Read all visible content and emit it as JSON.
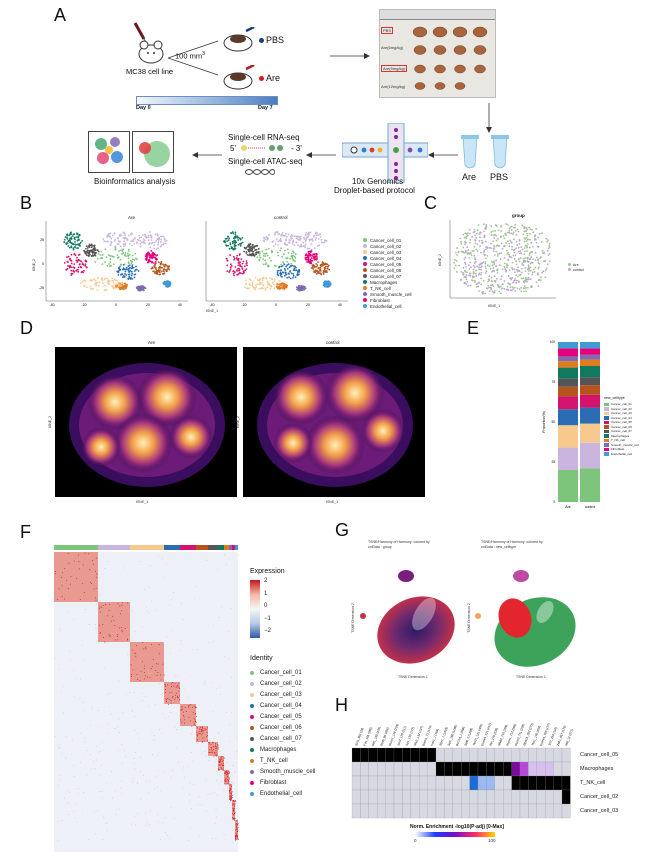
{
  "panels": {
    "A": "A",
    "B": "B",
    "C": "C",
    "D": "D",
    "E": "E",
    "F": "F",
    "G": "G",
    "H": "H"
  },
  "panelA": {
    "cell_line": "MC38 cell line",
    "tumor_size": "100 mm",
    "tumor_size_sup": "3",
    "pbs": "PBS",
    "are": "Are",
    "day0": "Day 0",
    "day7": "Day 7",
    "photo_rows": [
      "PBS",
      "Are(6mg/kg)",
      "Are(9mg/kg)",
      "Are(12mg/kg)"
    ],
    "tube_labels": [
      "Are",
      "PBS"
    ],
    "rna_seq": "Single-cell RNA-seq",
    "atac_seq": "Single-cell ATAC-seq",
    "seq_5": "5'",
    "seq_3": "- 3'",
    "genomics": "10x  Genomics",
    "droplet": "Droplet-based protocol",
    "bioinfo": "Bioinformatics analysis"
  },
  "panelB": {
    "titles": [
      "Are",
      "control"
    ],
    "xlabel": "tSNE_1",
    "ylabel": "tSNE_2",
    "x_ticks": [
      "-40",
      "-20",
      "0",
      "20",
      "40"
    ],
    "y_ticks": [
      "25",
      "0",
      "-25"
    ],
    "legend": [
      {
        "name": "Cancer_cell_01",
        "color": "#7cc57a"
      },
      {
        "name": "Cancer_cell_02",
        "color": "#c9b5dd"
      },
      {
        "name": "Cancer_cell_03",
        "color": "#f6c98e"
      },
      {
        "name": "Cancer_cell_04",
        "color": "#2a6db5"
      },
      {
        "name": "Cancer_cell_05",
        "color": "#d4136f"
      },
      {
        "name": "Cancer_cell_06",
        "color": "#b5551d"
      },
      {
        "name": "Cancer_cell_07",
        "color": "#555555"
      },
      {
        "name": "Macrophages",
        "color": "#117a5e"
      },
      {
        "name": "T_NK_cell",
        "color": "#e07b20"
      },
      {
        "name": "Smooth_muscle_cell",
        "color": "#7e6bb0"
      },
      {
        "name": "Fibroblast",
        "color": "#e6007e"
      },
      {
        "name": "Endothelial_cell",
        "color": "#3f9ad6"
      }
    ]
  },
  "panelC": {
    "title": "group",
    "xlabel": "tSNE_1",
    "ylabel": "tSNE_2",
    "legend": [
      {
        "name": "Are",
        "color": "#9ec98a"
      },
      {
        "name": "control",
        "color": "#b9a3d3"
      }
    ]
  },
  "panelD": {
    "titles": [
      "Are",
      "control"
    ],
    "xlabel": "tSNE_1",
    "ylabel": "tSNE_2"
  },
  "panelE": {
    "ylabel": "Proportion(%)",
    "y_ticks": [
      "100",
      "75",
      "50",
      "25",
      "0"
    ],
    "x_labels": [
      "Are",
      "control"
    ],
    "legend_title": "new_celltype",
    "legend": [
      "Cancer_cell_01",
      "Cancer_cell_02",
      "Cancer_cell_03",
      "Cancer_cell_04",
      "Cancer_cell_05",
      "Cancer_cell_06",
      "Cancer_cell_07",
      "Macrophages",
      "T_NK_cell",
      "Smooth_muscle_cell",
      "Fibroblast",
      "Endothelial_cell"
    ]
  },
  "panelF": {
    "expression_title": "Expression",
    "scale_ticks": [
      "2",
      "1",
      "0",
      "−1",
      "−2"
    ],
    "identity_title": "Identity",
    "identity": [
      "Cancer_cell_01",
      "Cancer_cell_02",
      "Cancer_cell_03",
      "Cancer_cell_04",
      "Cancer_cell_05",
      "Cancer_cell_06",
      "Cancer_cell_07",
      "Macrophages",
      "T_NK_cell",
      "Smooth_muscle_cell",
      "Fibroblast",
      "Endothelial_cell"
    ]
  },
  "panelG": {
    "title_left_1": "TSNE/Harmony of Harmony: colored by",
    "title_left_2": "colData : group",
    "title_right_1": "TSNE/Harmony of Harmony: colored by",
    "title_right_2": "colData : new_celltype",
    "xlabel": "TSNE Dimension 1",
    "ylabel": "TSNE Dimension 2"
  },
  "panelH": {
    "rows": [
      "Cancer_cell_05",
      "Macrophages",
      "T_NK_cell",
      "Cancer_cell_02",
      "Cancer_cell_03"
    ],
    "cols": [
      "Sirt1_362 (29)",
      "Fos_165 (286)",
      "Rtf1_195 (270)",
      "Rorb_80 (264)",
      "Runx1_118 (234)",
      "Jun2_129 (211)",
      "Ap1_130 (177)",
      "Nfe2_132 (127)",
      "Bach1_71 (173)",
      "Fos1_1 (184)",
      "Sfpi1_1 (1333)",
      "Spic_166 (1296)",
      "Bcl11a_1 (288)",
      "Spib_2 (1296)",
      "Tbx21_121 (409)",
      "Eomes_121 (412)",
      "Rel_270 (235)",
      "Nfkb2_710 (206)",
      "Runx1_712 (265)",
      "Runx3_711 (208)",
      "Zfp423_293 (273)",
      "Tbx1_176 (203)",
      "Eomes_790 (177)",
      "Tcf7_293 (116)",
      "Zeb1_857 (178)",
      "Mitf_12 (271)"
    ],
    "legend_title": "Norm. Enrichment -log10(P-adj) [0-Max]",
    "legend_min": "0",
    "legend_max": "100"
  }
}
